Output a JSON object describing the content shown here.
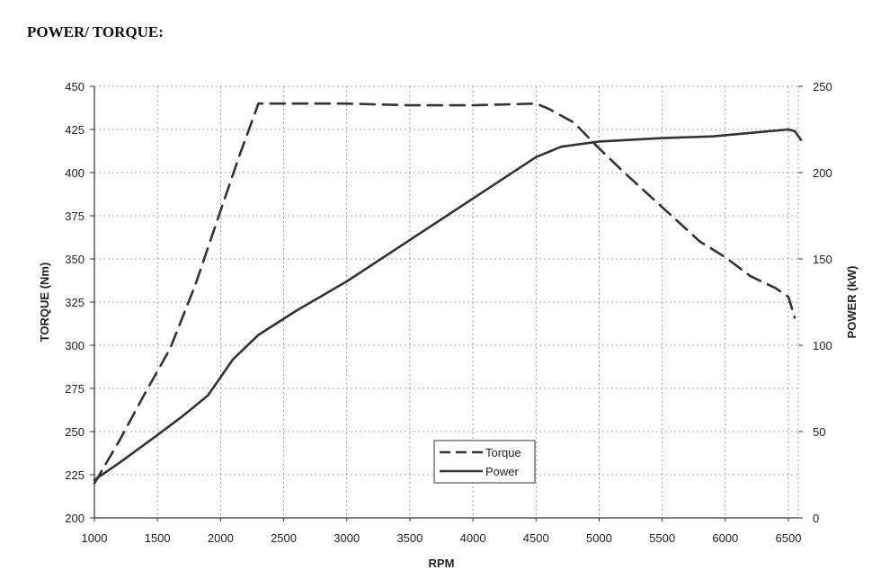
{
  "heading": "POWER/ TORQUE:",
  "chart_data": {
    "type": "line",
    "title": "",
    "xlabel": "RPM",
    "ylabel_left": "TORQUE (Nm)",
    "ylabel_right": "POWER (kW)",
    "xlim": [
      1000,
      6500
    ],
    "ylim_left": [
      200,
      450
    ],
    "ylim_right": [
      0,
      250
    ],
    "x_ticks": [
      "1000",
      "1500",
      "2000",
      "2500",
      "3000",
      "3500",
      "4000",
      "4500",
      "5000",
      "5500",
      "6000",
      "6500"
    ],
    "y_left_ticks": [
      "200",
      "225",
      "250",
      "275",
      "300",
      "325",
      "350",
      "375",
      "400",
      "425",
      "450"
    ],
    "y_right_ticks": [
      "0",
      "50",
      "100",
      "150",
      "200",
      "250"
    ],
    "grid": true,
    "legend_position": "bottom-center",
    "series": [
      {
        "name": "Torque",
        "axis": "left",
        "style": "dashed",
        "color": "#333333",
        "points": [
          [
            1000,
            220
          ],
          [
            1200,
            245
          ],
          [
            1400,
            272
          ],
          [
            1600,
            298
          ],
          [
            1800,
            335
          ],
          [
            2000,
            378
          ],
          [
            2150,
            410
          ],
          [
            2300,
            440
          ],
          [
            2500,
            440
          ],
          [
            3000,
            440
          ],
          [
            3500,
            439
          ],
          [
            4000,
            439
          ],
          [
            4500,
            440
          ],
          [
            4600,
            437
          ],
          [
            4800,
            429
          ],
          [
            5000,
            414
          ],
          [
            5200,
            400
          ],
          [
            5500,
            380
          ],
          [
            5800,
            360
          ],
          [
            6000,
            351
          ],
          [
            6200,
            340
          ],
          [
            6400,
            333
          ],
          [
            6500,
            328
          ],
          [
            6550,
            316
          ]
        ]
      },
      {
        "name": "Power",
        "axis": "right",
        "style": "solid",
        "color": "#333333",
        "points": [
          [
            1000,
            22
          ],
          [
            1200,
            32
          ],
          [
            1500,
            48
          ],
          [
            1700,
            59
          ],
          [
            1900,
            71
          ],
          [
            2100,
            92
          ],
          [
            2300,
            106
          ],
          [
            2600,
            120
          ],
          [
            3000,
            137
          ],
          [
            3500,
            161
          ],
          [
            4000,
            185
          ],
          [
            4500,
            209
          ],
          [
            4700,
            215
          ],
          [
            5000,
            218
          ],
          [
            5500,
            220
          ],
          [
            5900,
            221
          ],
          [
            6200,
            223
          ],
          [
            6500,
            225
          ],
          [
            6550,
            224
          ],
          [
            6600,
            219
          ]
        ]
      }
    ]
  }
}
